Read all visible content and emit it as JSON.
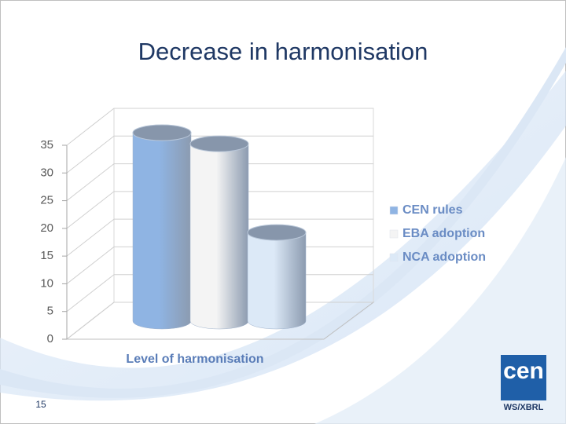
{
  "chart_data": {
    "type": "bar3d",
    "title": "Decrease in harmonisation",
    "x_label": "Level of harmonisation",
    "categories": [
      "Level of harmonisation"
    ],
    "series": [
      {
        "name": "CEN rules",
        "color": "#8fb4e3",
        "values": [
          34
        ]
      },
      {
        "name": "EBA adoption",
        "color": "#f4f4f4",
        "values": [
          32
        ]
      },
      {
        "name": "NCA adoption",
        "color": "#dce9f7",
        "values": [
          16
        ]
      }
    ],
    "ylim": [
      0,
      35
    ],
    "yticks": [
      0,
      5,
      10,
      15,
      20,
      25,
      30,
      35
    ],
    "grid": true,
    "legend": "right"
  },
  "slide": {
    "number": "15",
    "logo": "cen",
    "logo_caption": "WS/XBRL"
  }
}
